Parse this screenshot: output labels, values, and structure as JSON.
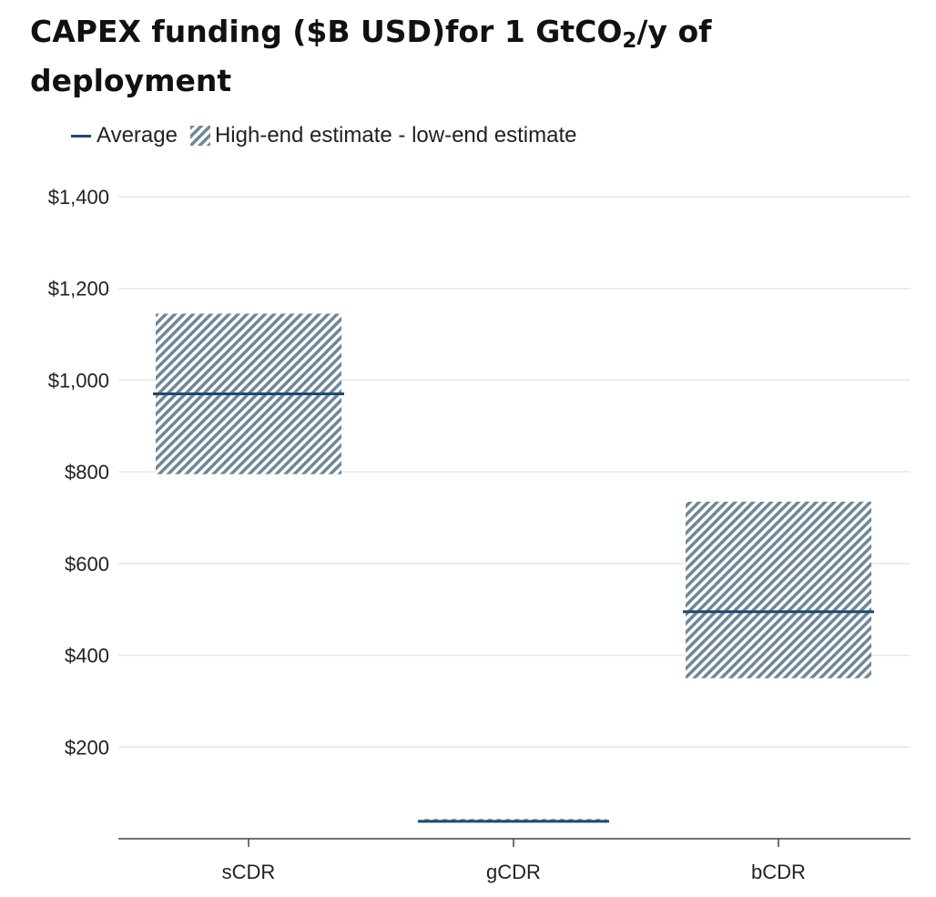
{
  "title": {
    "line_prefix": "CAPEX funding ($B USD)for 1 GtCO",
    "subscript": "2",
    "line_suffix": "/y of deployment"
  },
  "colors": {
    "average_line": "#1d4a6b",
    "hatch": "#6f8797",
    "grid": "#e6e6e6",
    "axis": "#444444"
  },
  "chart_data": {
    "type": "bar",
    "title": "CAPEX funding ($B USD)for 1 GtCO2/y of deployment",
    "xlabel": "",
    "ylabel": "",
    "categories": [
      "sCDR",
      "gCDR",
      "bCDR"
    ],
    "series": [
      {
        "name": "Average",
        "values": [
          970,
          38,
          495
        ]
      },
      {
        "name": "High-end estimate - low-end estimate",
        "low": [
          795,
          35,
          350
        ],
        "high": [
          1145,
          43,
          735
        ]
      }
    ],
    "ylim": [
      0,
      1400
    ],
    "yticks": [
      200,
      400,
      600,
      800,
      1000,
      1200,
      1400
    ],
    "ytick_labels": [
      "$200",
      "$400",
      "$600",
      "$800",
      "$1,000",
      "$1,200",
      "$1,400"
    ],
    "grid": true,
    "legend_position": "top-left"
  }
}
